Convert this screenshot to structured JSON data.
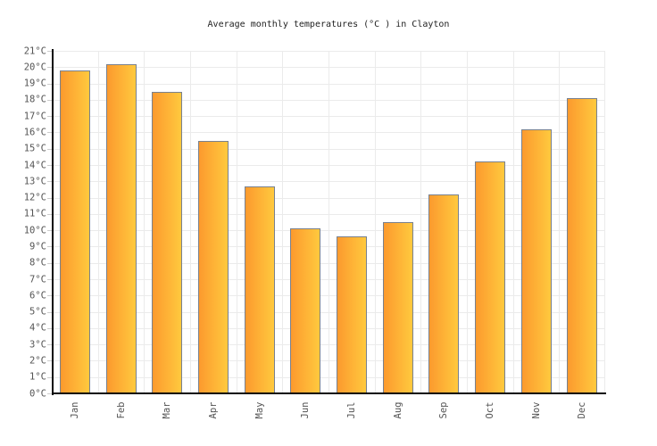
{
  "title": "Average monthly temperatures (°C ) in Clayton",
  "chart_data": {
    "type": "bar",
    "title": "Average monthly temperatures (°C ) in Clayton",
    "categories": [
      "Jan",
      "Feb",
      "Mar",
      "Apr",
      "May",
      "Jun",
      "Jul",
      "Aug",
      "Sep",
      "Oct",
      "Nov",
      "Dec"
    ],
    "values": [
      19.8,
      20.2,
      18.5,
      15.5,
      12.7,
      10.1,
      9.6,
      10.5,
      12.2,
      14.2,
      16.2,
      18.1
    ],
    "xlabel": "",
    "ylabel": "",
    "ylim": [
      0,
      21
    ],
    "ytick_step": 1,
    "ytick_suffix": "°C",
    "grid": true,
    "legend": false
  },
  "colors": {
    "background": "#ffffff",
    "title_text": "#222222",
    "bar_gradient_left": "#fc9a2e",
    "bar_gradient_right": "#ffc93e",
    "bar_border": "#78818f",
    "grid": "#ebebeb",
    "axis": "#0a0a0a",
    "tick": "#cccccc",
    "axis_label_text": "#545454"
  }
}
